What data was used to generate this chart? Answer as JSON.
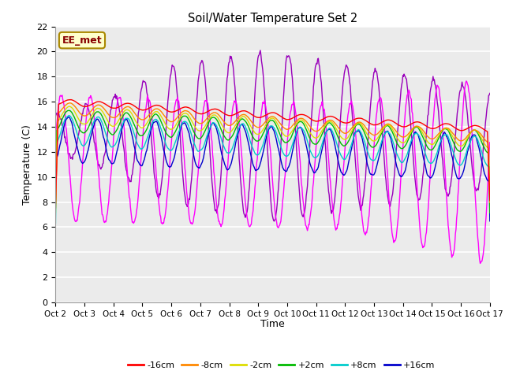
{
  "title": "Soil/Water Temperature Set 2",
  "xlabel": "Time",
  "ylabel": "Temperature (C)",
  "ylim": [
    0,
    22
  ],
  "yticks": [
    0,
    2,
    4,
    6,
    8,
    10,
    12,
    14,
    16,
    18,
    20,
    22
  ],
  "x_labels": [
    "Oct 2",
    "Oct 3",
    "Oct 4",
    "Oct 5",
    "Oct 6",
    "Oct 7",
    "Oct 8",
    "Oct 9",
    "Oct 10",
    "Oct 11",
    "Oct 12",
    "Oct 13",
    "Oct 14",
    "Oct 15",
    "Oct 16",
    "Oct 17"
  ],
  "annotation": "EE_met",
  "colors": {
    "-16cm": "#FF0000",
    "-8cm": "#FF8800",
    "-2cm": "#DDDD00",
    "+2cm": "#00BB00",
    "+8cm": "#00CCCC",
    "+16cm": "#0000CC",
    "+32cm": "#FF00FF",
    "+64cm": "#9900BB"
  },
  "plot_bg_color": "#EBEBEB",
  "grid_color": "#FFFFFF"
}
